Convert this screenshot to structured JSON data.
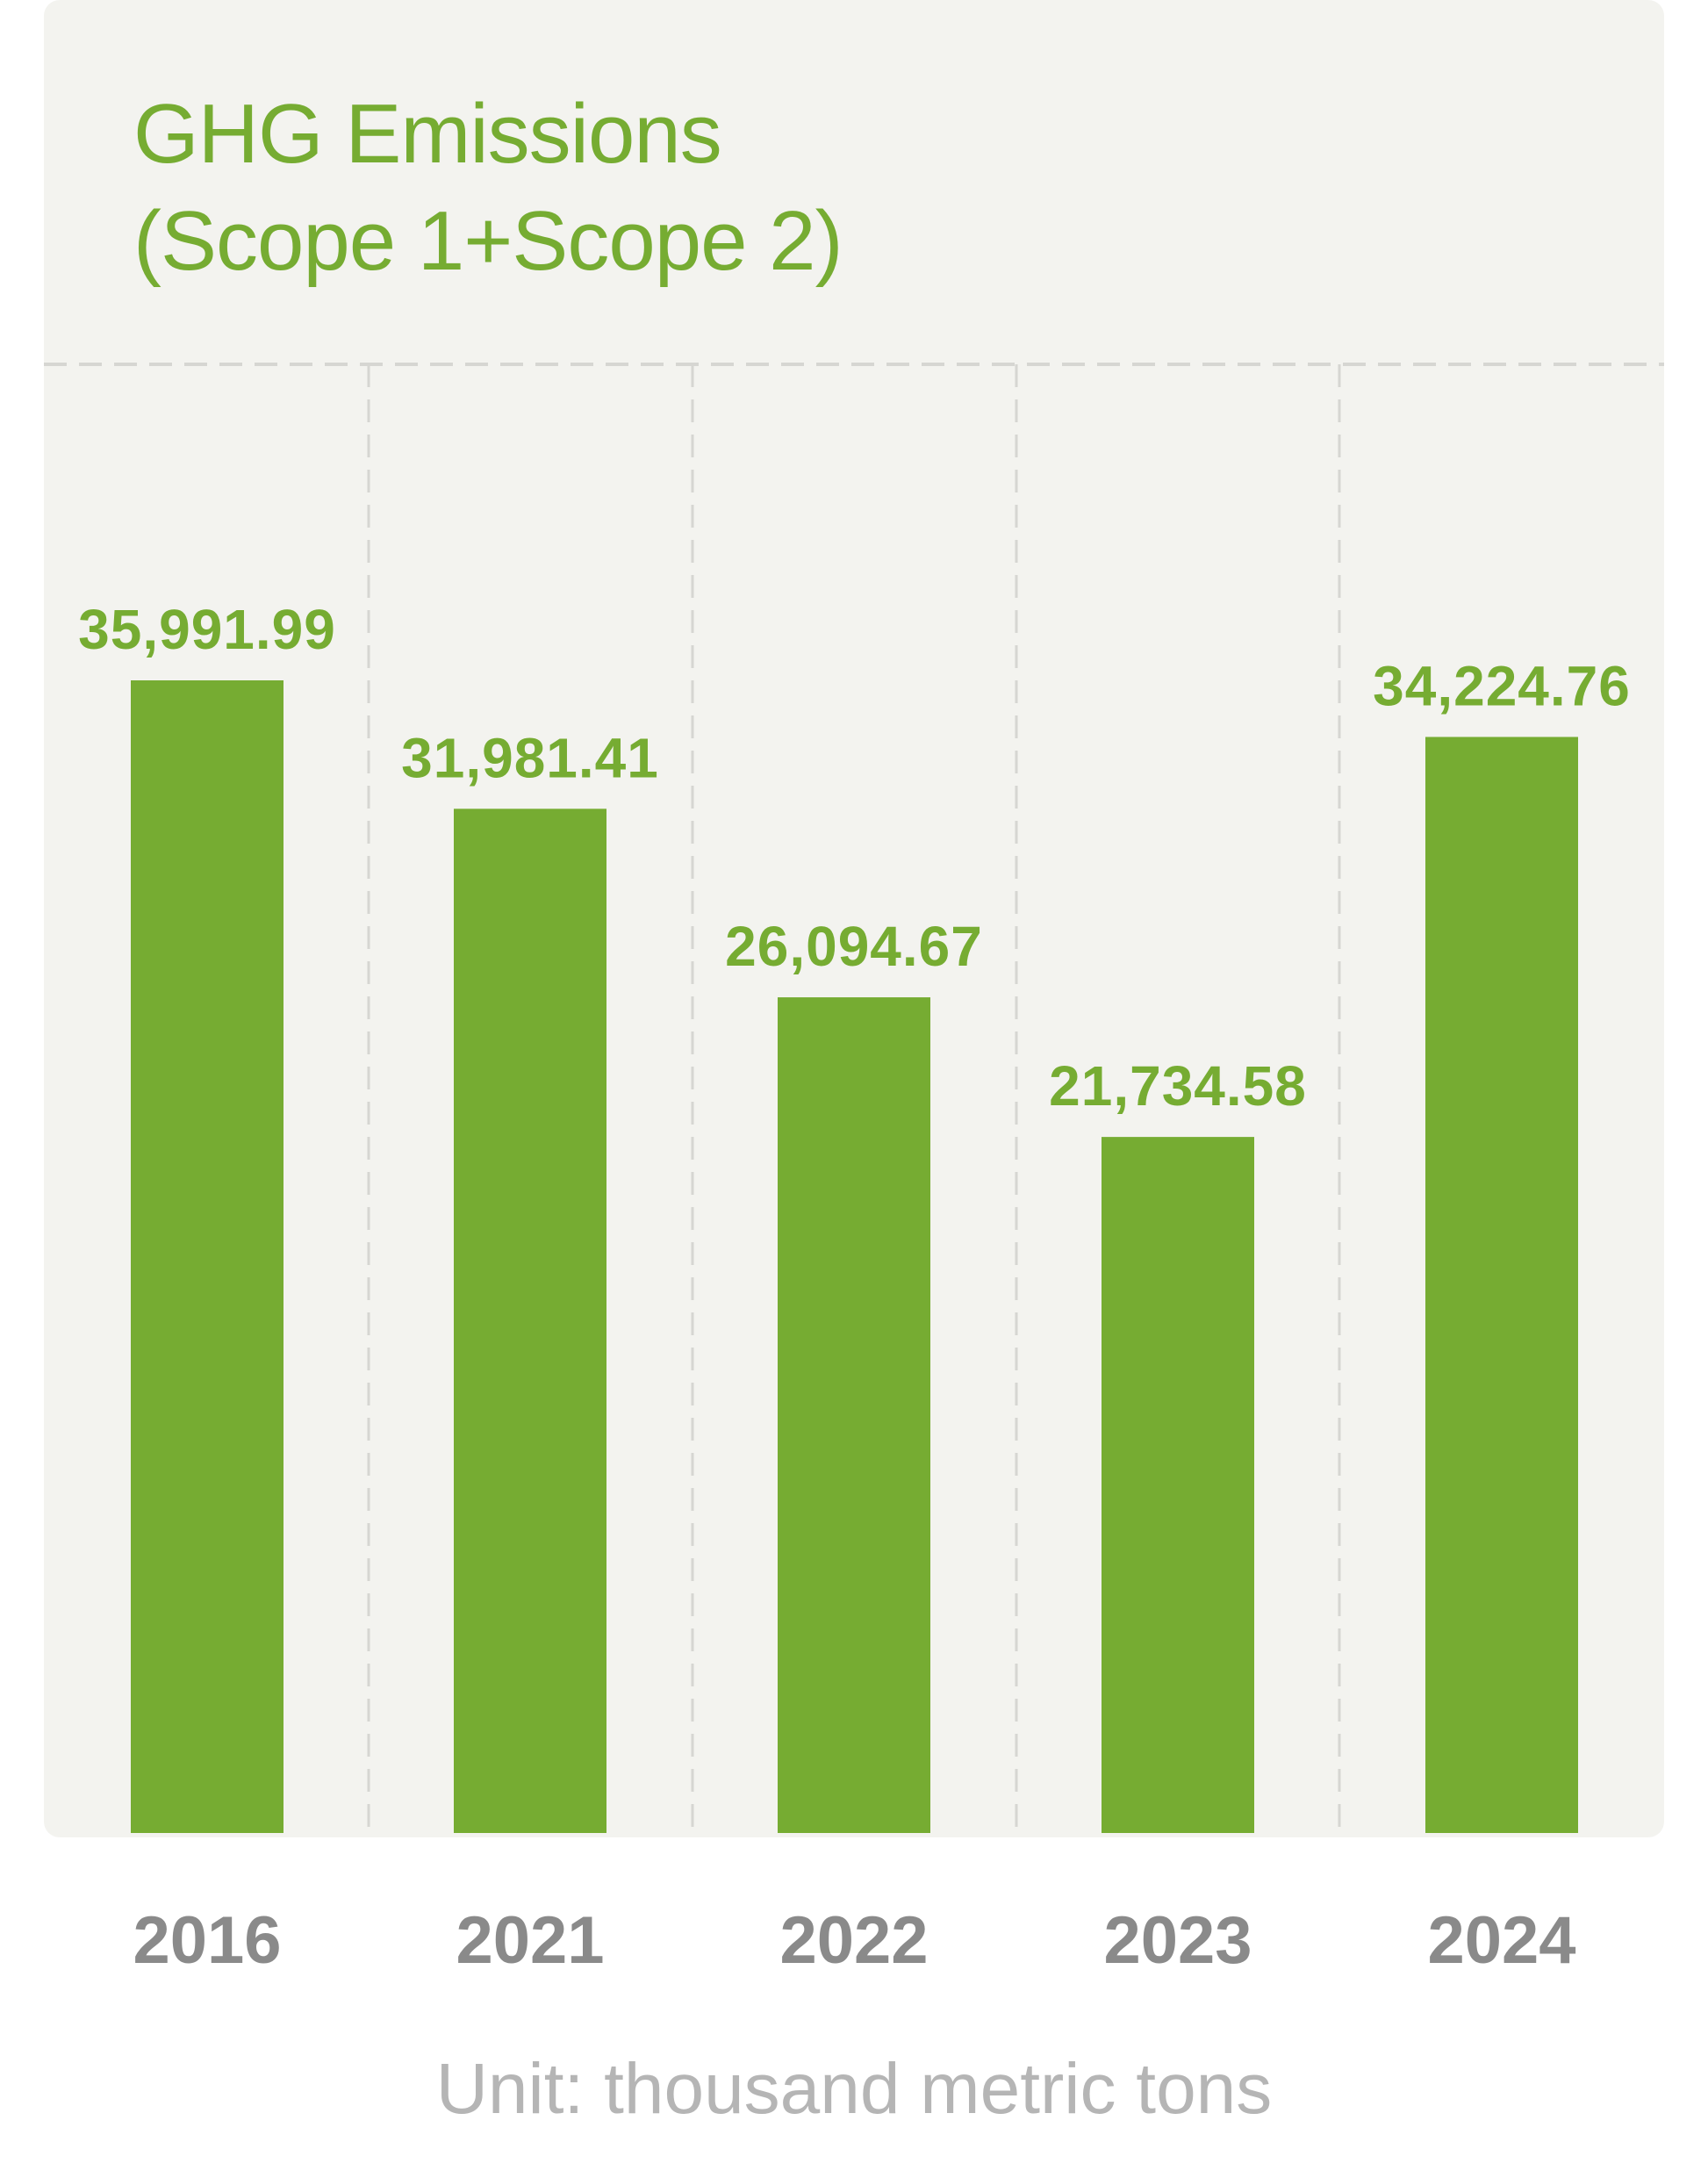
{
  "colors": {
    "bar": "#76ac32",
    "title": "#76ac32",
    "value_label": "#76ac32",
    "year_label": "#8a8a8a",
    "unit_label": "#b5b5b5",
    "panel_bg": "#f3f3ef",
    "grid": "#d6d6d2"
  },
  "chart_data": {
    "type": "bar",
    "title_lines": [
      "GHG Emissions",
      "(Scope 1+Scope 2)"
    ],
    "categories": [
      "2016",
      "2021",
      "2022",
      "2023",
      "2024"
    ],
    "values": [
      35991.99,
      31981.41,
      26094.67,
      21734.58,
      34224.76
    ],
    "value_labels": [
      "35,991.99",
      "31,981.41",
      "26,094.67",
      "21,734.58",
      "34,224.76"
    ],
    "unit": "Unit: thousand metric tons",
    "grid": "dashed vertical separators between categories, dashed top line",
    "legend": "none"
  }
}
